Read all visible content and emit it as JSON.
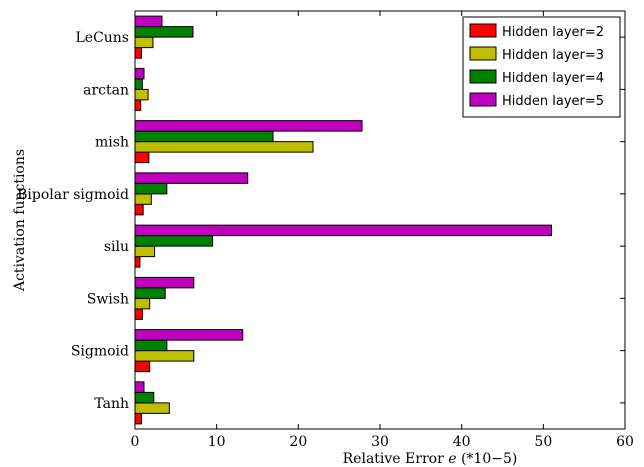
{
  "chart_data": {
    "type": "bar",
    "orientation": "horizontal",
    "title": "",
    "xlabel": "Relative Error",
    "xlabel_var": "e",
    "xlabel_unit": "(*10−5)",
    "ylabel": "Activation functions",
    "xlim": [
      0,
      60
    ],
    "xticks": [
      "0",
      "10",
      "20",
      "30",
      "40",
      "50",
      "60"
    ],
    "grid": false,
    "legend_position": "top-right",
    "categories": [
      "LeCuns",
      "arctan",
      "mish",
      "Bipolar sigmoid",
      "silu",
      "Swish",
      "Sigmoid",
      "Tanh"
    ],
    "series": [
      {
        "name": "Hidden layer=2",
        "color": "#ff0000",
        "values": [
          0.8,
          0.7,
          1.7,
          1.0,
          0.6,
          0.9,
          1.8,
          0.8
        ]
      },
      {
        "name": "Hidden layer=3",
        "color": "#bfbf00",
        "values": [
          2.2,
          1.6,
          21.8,
          2.0,
          2.4,
          1.8,
          7.2,
          4.2
        ]
      },
      {
        "name": "Hidden layer=4",
        "color": "#008000",
        "values": [
          7.1,
          0.9,
          16.9,
          3.9,
          9.5,
          3.7,
          3.9,
          2.3
        ]
      },
      {
        "name": "Hidden layer=5",
        "color": "#bf00bf",
        "values": [
          3.3,
          1.1,
          27.8,
          13.8,
          51.0,
          7.2,
          13.2,
          1.1
        ]
      }
    ]
  }
}
